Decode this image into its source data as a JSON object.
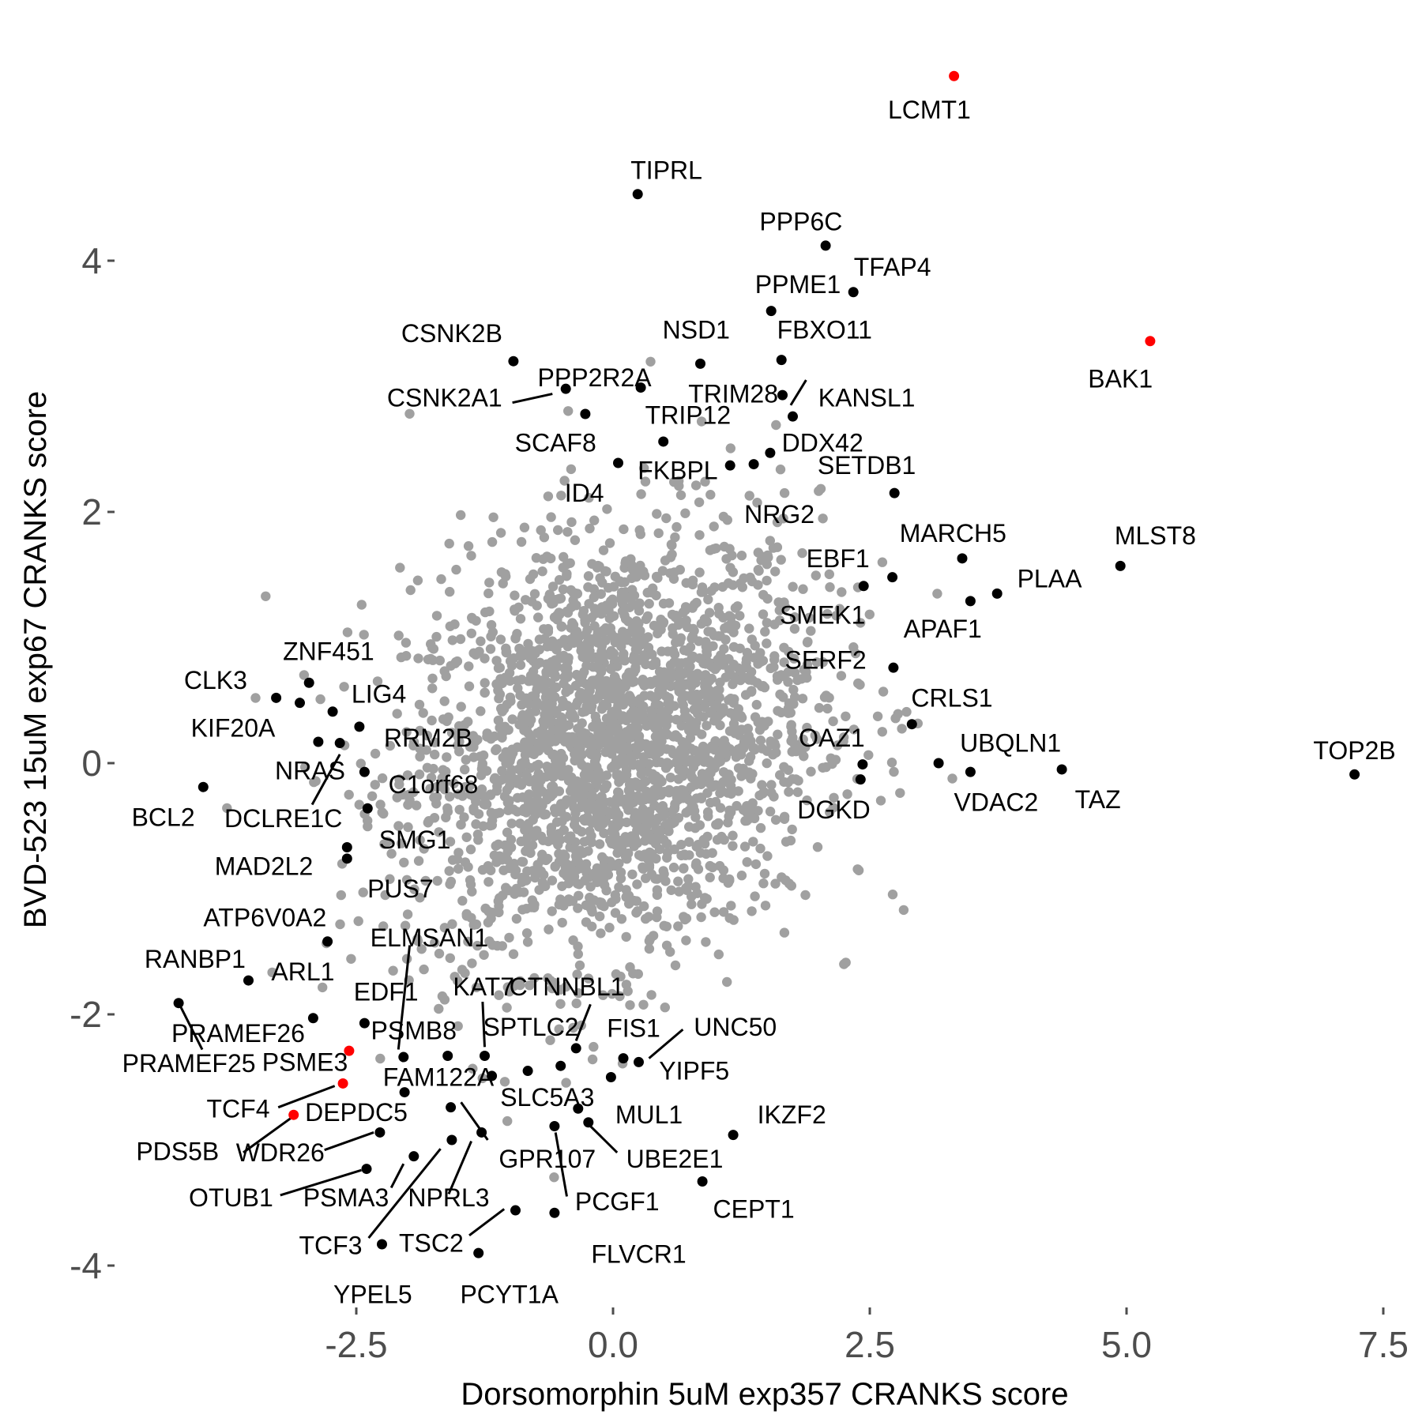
{
  "chart_data": {
    "type": "scatter",
    "xlabel": "Dorsomorphin 5uM exp357 CRANKS score",
    "ylabel": "BVD-523 15uM exp67 CRANKS score",
    "xlim": [
      -4.7,
      7.6
    ],
    "ylim": [
      -4.45,
      5.8
    ],
    "x_ticks": [
      -2.5,
      0.0,
      2.5,
      5.0,
      7.5
    ],
    "x_tick_labels": [
      "-2.5",
      "0.0",
      "2.5",
      "5.0",
      "7.5"
    ],
    "y_ticks": [
      -4,
      -2,
      0,
      2,
      4
    ],
    "y_tick_labels": [
      "-4",
      "-2",
      "0",
      "2",
      "4"
    ],
    "grid": false,
    "colors": {
      "background": "#ffffff",
      "background_points": "#a0a0a0",
      "highlight": "#000000",
      "special": "#ff0000",
      "axis_text": "#4d4d4d"
    },
    "background_cloud": {
      "description_count": 2500,
      "center": [
        0.0,
        0.15
      ],
      "sd": [
        1.0,
        0.85
      ],
      "correlation": 0.2,
      "color": "#a0a0a0"
    },
    "highlighted_points": [
      {
        "label": "LCMT1",
        "x": 3.32,
        "y": 5.47,
        "color": "#ff0000"
      },
      {
        "label": "TIPRL",
        "x": 0.24,
        "y": 4.53,
        "color": "#000000"
      },
      {
        "label": "PPP6C",
        "x": 2.07,
        "y": 4.12,
        "color": "#000000"
      },
      {
        "label": "TFAP4",
        "x": 2.34,
        "y": 3.75,
        "color": "#000000"
      },
      {
        "label": "PPME1",
        "x": 1.54,
        "y": 3.6,
        "color": "#000000"
      },
      {
        "label": "BAK1",
        "x": 5.23,
        "y": 3.36,
        "color": "#ff0000"
      },
      {
        "label": "CSNK2B",
        "x": -0.97,
        "y": 3.2,
        "color": "#000000"
      },
      {
        "label": "NSD1",
        "x": 0.85,
        "y": 3.18,
        "color": "#000000"
      },
      {
        "label": "FBXO11",
        "x": 1.64,
        "y": 3.21,
        "color": "#000000"
      },
      {
        "label": "PPP2R2A",
        "x": 0.27,
        "y": 2.99,
        "color": "#000000"
      },
      {
        "label": "CSNK2A1",
        "x": -0.46,
        "y": 2.98,
        "color": "#000000"
      },
      {
        "label": "TRIM28",
        "x": 1.65,
        "y": 2.93,
        "color": "#000000"
      },
      {
        "label": "KANSL1",
        "x": 1.75,
        "y": 2.76,
        "color": "#000000"
      },
      {
        "label": "SCAF8",
        "x": -0.27,
        "y": 2.78,
        "color": "#000000"
      },
      {
        "label": "TRIP12",
        "x": 0.49,
        "y": 2.56,
        "color": "#000000"
      },
      {
        "label": "DDX42",
        "x": 1.53,
        "y": 2.47,
        "color": "#000000"
      },
      {
        "label": "FKBPL",
        "x": 1.37,
        "y": 2.38,
        "color": "#000000"
      },
      {
        "label": "SETDB1",
        "x": 2.74,
        "y": 2.15,
        "color": "#000000"
      },
      {
        "label": "ID4",
        "x": 0.05,
        "y": 2.39,
        "color": "#000000"
      },
      {
        "label": "NRG2",
        "x": 1.14,
        "y": 2.37,
        "color": "#000000"
      },
      {
        "label": "MARCH5",
        "x": 3.4,
        "y": 1.63,
        "color": "#000000"
      },
      {
        "label": "MLST8",
        "x": 4.94,
        "y": 1.57,
        "color": "#000000"
      },
      {
        "label": "EBF1",
        "x": 2.72,
        "y": 1.48,
        "color": "#000000"
      },
      {
        "label": "PLAA",
        "x": 3.74,
        "y": 1.35,
        "color": "#000000"
      },
      {
        "label": "SMEK1",
        "x": 2.44,
        "y": 1.41,
        "color": "#000000"
      },
      {
        "label": "APAF1",
        "x": 3.48,
        "y": 1.29,
        "color": "#000000"
      },
      {
        "label": "SERF2",
        "x": 2.73,
        "y": 0.76,
        "color": "#000000"
      },
      {
        "label": "ZNF451",
        "x": -2.96,
        "y": 0.64,
        "color": "#000000"
      },
      {
        "label": "CLK3",
        "x": -3.28,
        "y": 0.52,
        "color": "#000000"
      },
      {
        "label": "KIF20A",
        "x": -3.05,
        "y": 0.48,
        "color": "#000000"
      },
      {
        "label": "LIG4",
        "x": -2.73,
        "y": 0.41,
        "color": "#000000"
      },
      {
        "label": "CRLS1",
        "x": 2.91,
        "y": 0.31,
        "color": "#000000"
      },
      {
        "label": "RRM2B",
        "x": -2.47,
        "y": 0.29,
        "color": "#000000"
      },
      {
        "label": "NRAS",
        "x": -2.87,
        "y": 0.17,
        "color": "#000000"
      },
      {
        "label": "DCLRE1C",
        "x": -2.66,
        "y": 0.16,
        "color": "#000000"
      },
      {
        "label": "OAZ1",
        "x": 2.43,
        "y": -0.01,
        "color": "#000000"
      },
      {
        "label": "UBQLN1",
        "x": 3.17,
        "y": 0.0,
        "color": "#000000"
      },
      {
        "label": "TOP2B",
        "x": 7.22,
        "y": -0.09,
        "color": "#000000"
      },
      {
        "label": "VDAC2",
        "x": 3.48,
        "y": -0.07,
        "color": "#000000"
      },
      {
        "label": "TAZ",
        "x": 4.37,
        "y": -0.05,
        "color": "#000000"
      },
      {
        "label": "C1orf68",
        "x": -2.42,
        "y": -0.07,
        "color": "#000000"
      },
      {
        "label": "DGKD",
        "x": 2.41,
        "y": -0.13,
        "color": "#000000"
      },
      {
        "label": "BCL2",
        "x": -3.99,
        "y": -0.19,
        "color": "#000000"
      },
      {
        "label": "SMG1",
        "x": -2.39,
        "y": -0.36,
        "color": "#000000"
      },
      {
        "label": "MAD2L2",
        "x": -2.59,
        "y": -0.67,
        "color": "#000000"
      },
      {
        "label": "PUS7",
        "x": -2.59,
        "y": -0.76,
        "color": "#000000"
      },
      {
        "label": "ATP6V0A2",
        "x": -2.78,
        "y": -1.42,
        "color": "#000000"
      },
      {
        "label": "ARL1",
        "x": -3.55,
        "y": -1.73,
        "color": "#000000"
      },
      {
        "label": "RANBP1",
        "x": -4.23,
        "y": -1.91,
        "color": "#000000"
      },
      {
        "label": "PRAMEF26",
        "x": -2.92,
        "y": -2.03,
        "color": "#000000"
      },
      {
        "label": "PSMB8",
        "x": -2.42,
        "y": -2.07,
        "color": "#000000"
      },
      {
        "label": "ELMSAN1",
        "x": -2.04,
        "y": -2.34,
        "color": "#000000"
      },
      {
        "label": "PSME3",
        "x": -2.57,
        "y": -2.29,
        "color": "#ff0000"
      },
      {
        "label": "KAT7",
        "x": -1.61,
        "y": -2.33,
        "color": "#000000"
      },
      {
        "label": "SPTLC2",
        "x": -1.25,
        "y": -2.33,
        "color": "#000000"
      },
      {
        "label": "CTNNBL1",
        "x": -0.36,
        "y": -2.27,
        "color": "#000000"
      },
      {
        "label": "FIS1",
        "x": 0.1,
        "y": -2.35,
        "color": "#000000"
      },
      {
        "label": "UNC50",
        "x": 0.25,
        "y": -2.38,
        "color": "#000000"
      },
      {
        "label": "EDF1",
        "x": -0.51,
        "y": -2.41,
        "color": "#000000"
      },
      {
        "label": "FAM122A",
        "x": -0.83,
        "y": -2.45,
        "color": "#000000"
      },
      {
        "label": "YIPF5",
        "x": -0.02,
        "y": -2.5,
        "color": "#000000"
      },
      {
        "label": "DEPDC5",
        "x": -2.63,
        "y": -2.55,
        "color": "#ff0000"
      },
      {
        "label": "TCF4",
        "x": -3.11,
        "y": -2.8,
        "color": "#ff0000"
      },
      {
        "label": "SLC5A3",
        "x": -1.18,
        "y": -2.49,
        "color": "#000000"
      },
      {
        "label": "MUL1",
        "x": -0.34,
        "y": -2.75,
        "color": "#000000"
      },
      {
        "label": "IKZF2",
        "x": 1.17,
        "y": -2.96,
        "color": "#000000"
      },
      {
        "label": "WDR26",
        "x": -2.27,
        "y": -2.94,
        "color": "#000000"
      },
      {
        "label": "PDS5B",
        "x": -2.03,
        "y": -2.62,
        "color": "#000000"
      },
      {
        "label": "GPR107",
        "x": -1.58,
        "y": -2.74,
        "color": "#000000"
      },
      {
        "label": "UBE2E1",
        "x": -0.24,
        "y": -2.86,
        "color": "#000000"
      },
      {
        "label": "PCGF1",
        "x": -0.57,
        "y": -2.89,
        "color": "#000000"
      },
      {
        "label": "NPRL3",
        "x": -1.28,
        "y": -2.94,
        "color": "#000000"
      },
      {
        "label": "TCF3",
        "x": -1.57,
        "y": -3.0,
        "color": "#000000"
      },
      {
        "label": "PSMA3",
        "x": -1.94,
        "y": -3.13,
        "color": "#000000"
      },
      {
        "label": "OTUB1",
        "x": -2.4,
        "y": -3.23,
        "color": "#000000"
      },
      {
        "label": "CEPT1",
        "x": 0.87,
        "y": -3.33,
        "color": "#000000"
      },
      {
        "label": "TSC2",
        "x": -0.95,
        "y": -3.56,
        "color": "#000000"
      },
      {
        "label": "FLVCR1",
        "x": -0.57,
        "y": -3.58,
        "color": "#000000"
      },
      {
        "label": "YPEL5",
        "x": -2.25,
        "y": -3.83,
        "color": "#000000"
      },
      {
        "label": "PCYT1A",
        "x": -1.31,
        "y": -3.9,
        "color": "#000000"
      }
    ],
    "labels": [
      {
        "text": "LCMT1",
        "lx": 3.08,
        "ly": 5.2
      },
      {
        "text": "TIPRL",
        "lx": 0.52,
        "ly": 4.72
      },
      {
        "text": "PPP6C",
        "lx": 1.83,
        "ly": 4.31
      },
      {
        "text": "TFAP4",
        "lx": 2.72,
        "ly": 3.95
      },
      {
        "text": "PPME1",
        "lx": 1.8,
        "ly": 3.81
      },
      {
        "text": "BAK1",
        "lx": 4.94,
        "ly": 3.06
      },
      {
        "text": "CSNK2B",
        "lx": -1.57,
        "ly": 3.42
      },
      {
        "text": "NSD1",
        "lx": 0.81,
        "ly": 3.45
      },
      {
        "text": "FBXO11",
        "lx": 2.06,
        "ly": 3.45
      },
      {
        "text": "PPP2R2A",
        "lx": -0.18,
        "ly": 3.07
      },
      {
        "text": "CSNK2A1",
        "lx": -1.64,
        "ly": 2.91
      },
      {
        "text": "TRIM28",
        "lx": 1.17,
        "ly": 2.94
      },
      {
        "text": "KANSL1",
        "lx": 2.47,
        "ly": 2.91
      },
      {
        "text": "SCAF8",
        "lx": -0.56,
        "ly": 2.55
      },
      {
        "text": "TRIP12",
        "lx": 0.73,
        "ly": 2.77
      },
      {
        "text": "DDX42",
        "lx": 2.04,
        "ly": 2.55
      },
      {
        "text": "FKBPL",
        "lx": 0.63,
        "ly": 2.33
      },
      {
        "text": "SETDB1",
        "lx": 2.47,
        "ly": 2.37
      },
      {
        "text": "ID4",
        "lx": -0.28,
        "ly": 2.15
      },
      {
        "text": "NRG2",
        "lx": 1.62,
        "ly": 1.98
      },
      {
        "text": "MARCH5",
        "lx": 3.31,
        "ly": 1.83
      },
      {
        "text": "MLST8",
        "lx": 5.28,
        "ly": 1.81
      },
      {
        "text": "EBF1",
        "lx": 2.19,
        "ly": 1.63
      },
      {
        "text": "PLAA",
        "lx": 4.25,
        "ly": 1.47
      },
      {
        "text": "SMEK1",
        "lx": 2.04,
        "ly": 1.18
      },
      {
        "text": "APAF1",
        "lx": 3.21,
        "ly": 1.07
      },
      {
        "text": "SERF2",
        "lx": 2.07,
        "ly": 0.82
      },
      {
        "text": "ZNF451",
        "lx": -2.77,
        "ly": 0.89
      },
      {
        "text": "CLK3",
        "lx": -3.87,
        "ly": 0.66
      },
      {
        "text": "KIF20A",
        "lx": -3.7,
        "ly": 0.28
      },
      {
        "text": "LIG4",
        "lx": -2.28,
        "ly": 0.55
      },
      {
        "text": "CRLS1",
        "lx": 3.3,
        "ly": 0.52
      },
      {
        "text": "RRM2B",
        "lx": -1.8,
        "ly": 0.2
      },
      {
        "text": "NRAS",
        "lx": -2.95,
        "ly": -0.06
      },
      {
        "text": "DCLRE1C",
        "lx": -3.21,
        "ly": -0.44
      },
      {
        "text": "OAZ1",
        "lx": 2.13,
        "ly": 0.2
      },
      {
        "text": "UBQLN1",
        "lx": 3.87,
        "ly": 0.16
      },
      {
        "text": "TOP2B",
        "lx": 7.22,
        "ly": 0.1
      },
      {
        "text": "VDAC2",
        "lx": 3.73,
        "ly": -0.31
      },
      {
        "text": "TAZ",
        "lx": 4.72,
        "ly": -0.29
      },
      {
        "text": "C1orf68",
        "lx": -1.75,
        "ly": -0.17
      },
      {
        "text": "DGKD",
        "lx": 2.15,
        "ly": -0.37
      },
      {
        "text": "BCL2",
        "lx": -4.38,
        "ly": -0.43
      },
      {
        "text": "SMG1",
        "lx": -1.93,
        "ly": -0.61
      },
      {
        "text": "MAD2L2",
        "lx": -3.4,
        "ly": -0.82
      },
      {
        "text": "PUS7",
        "lx": -2.07,
        "ly": -1.0
      },
      {
        "text": "ATP6V0A2",
        "lx": -3.39,
        "ly": -1.23
      },
      {
        "text": "ARL1",
        "lx": -3.02,
        "ly": -1.66
      },
      {
        "text": "RANBP1",
        "lx": -4.07,
        "ly": -1.56
      },
      {
        "text": "PRAMEF26",
        "lx": -3.65,
        "ly": -2.15
      },
      {
        "text": "PRAMEF25",
        "lx": -4.13,
        "ly": -2.39
      },
      {
        "text": "PSMB8",
        "lx": -1.94,
        "ly": -2.13
      },
      {
        "text": "ELMSAN1",
        "lx": -1.79,
        "ly": -1.39
      },
      {
        "text": "EDF1",
        "lx": -2.21,
        "ly": -1.82
      },
      {
        "text": "PSME3",
        "lx": -3.0,
        "ly": -2.38
      },
      {
        "text": "KAT7",
        "lx": -1.26,
        "ly": -1.78
      },
      {
        "text": "SPTLC2",
        "lx": -0.8,
        "ly": -2.1
      },
      {
        "text": "CTNNBL1",
        "lx": -0.45,
        "ly": -1.78
      },
      {
        "text": "FIS1",
        "lx": 0.2,
        "ly": -2.11
      },
      {
        "text": "UNC50",
        "lx": 1.19,
        "ly": -2.1
      },
      {
        "text": "FAM122A",
        "lx": -1.7,
        "ly": -2.5
      },
      {
        "text": "YIPF5",
        "lx": 0.79,
        "ly": -2.45
      },
      {
        "text": "DEPDC5",
        "lx": -2.5,
        "ly": -2.78
      },
      {
        "text": "TCF4",
        "lx": -3.65,
        "ly": -2.75
      },
      {
        "text": "SLC5A3",
        "lx": -0.64,
        "ly": -2.66
      },
      {
        "text": "MUL1",
        "lx": 0.35,
        "ly": -2.8
      },
      {
        "text": "IKZF2",
        "lx": 1.74,
        "ly": -2.8
      },
      {
        "text": "WDR26",
        "lx": -3.24,
        "ly": -3.1
      },
      {
        "text": "PDS5B",
        "lx": -4.24,
        "ly": -3.09
      },
      {
        "text": "GPR107",
        "lx": -0.64,
        "ly": -3.15
      },
      {
        "text": "UBE2E1",
        "lx": 0.6,
        "ly": -3.15
      },
      {
        "text": "PCGF1",
        "lx": 0.04,
        "ly": -3.49
      },
      {
        "text": "NPRL3",
        "lx": -1.6,
        "ly": -3.46
      },
      {
        "text": "TCF3",
        "lx": -2.75,
        "ly": -3.84
      },
      {
        "text": "PSMA3",
        "lx": -2.6,
        "ly": -3.46
      },
      {
        "text": "OTUB1",
        "lx": -3.72,
        "ly": -3.46
      },
      {
        "text": "CEPT1",
        "lx": 1.37,
        "ly": -3.55
      },
      {
        "text": "TSC2",
        "lx": -1.77,
        "ly": -3.82
      },
      {
        "text": "FLVCR1",
        "lx": 0.25,
        "ly": -3.91
      },
      {
        "text": "YPEL5",
        "lx": -2.34,
        "ly": -4.23
      },
      {
        "text": "PCYT1A",
        "lx": -1.01,
        "ly": -4.23
      }
    ],
    "leader_lines": [
      {
        "x1": -0.59,
        "y1": 2.94,
        "x2": -0.98,
        "y2": 2.87
      },
      {
        "x1": 1.73,
        "y1": 2.85,
        "x2": 1.88,
        "y2": 3.05
      },
      {
        "x1": -2.66,
        "y1": 0.07,
        "x2": -2.93,
        "y2": -0.33
      },
      {
        "x1": -4.21,
        "y1": -1.94,
        "x2": -4.0,
        "y2": -2.28
      },
      {
        "x1": -1.98,
        "y1": -1.45,
        "x2": -2.09,
        "y2": -2.28
      },
      {
        "x1": -1.27,
        "y1": -1.9,
        "x2": -1.25,
        "y2": -2.26
      },
      {
        "x1": -0.36,
        "y1": -2.21,
        "x2": -0.22,
        "y2": -1.92
      },
      {
        "x1": 0.35,
        "y1": -2.35,
        "x2": 0.68,
        "y2": -2.12
      },
      {
        "x1": -2.71,
        "y1": -2.57,
        "x2": -3.26,
        "y2": -2.74
      },
      {
        "x1": -3.11,
        "y1": -2.81,
        "x2": -3.6,
        "y2": -3.1
      },
      {
        "x1": -2.33,
        "y1": -2.94,
        "x2": -2.81,
        "y2": -3.08
      },
      {
        "x1": -1.48,
        "y1": -2.7,
        "x2": -1.22,
        "y2": -3.0
      },
      {
        "x1": -0.22,
        "y1": -2.89,
        "x2": 0.04,
        "y2": -3.1
      },
      {
        "x1": -0.56,
        "y1": -2.94,
        "x2": -0.45,
        "y2": -3.45
      },
      {
        "x1": -1.38,
        "y1": -3.01,
        "x2": -1.6,
        "y2": -3.43
      },
      {
        "x1": -1.68,
        "y1": -3.07,
        "x2": -2.38,
        "y2": -3.78
      },
      {
        "x1": -2.04,
        "y1": -3.19,
        "x2": -2.16,
        "y2": -3.38
      },
      {
        "x1": -2.45,
        "y1": -3.24,
        "x2": -3.24,
        "y2": -3.44
      },
      {
        "x1": -1.06,
        "y1": -3.55,
        "x2": -1.4,
        "y2": -3.76
      }
    ]
  }
}
